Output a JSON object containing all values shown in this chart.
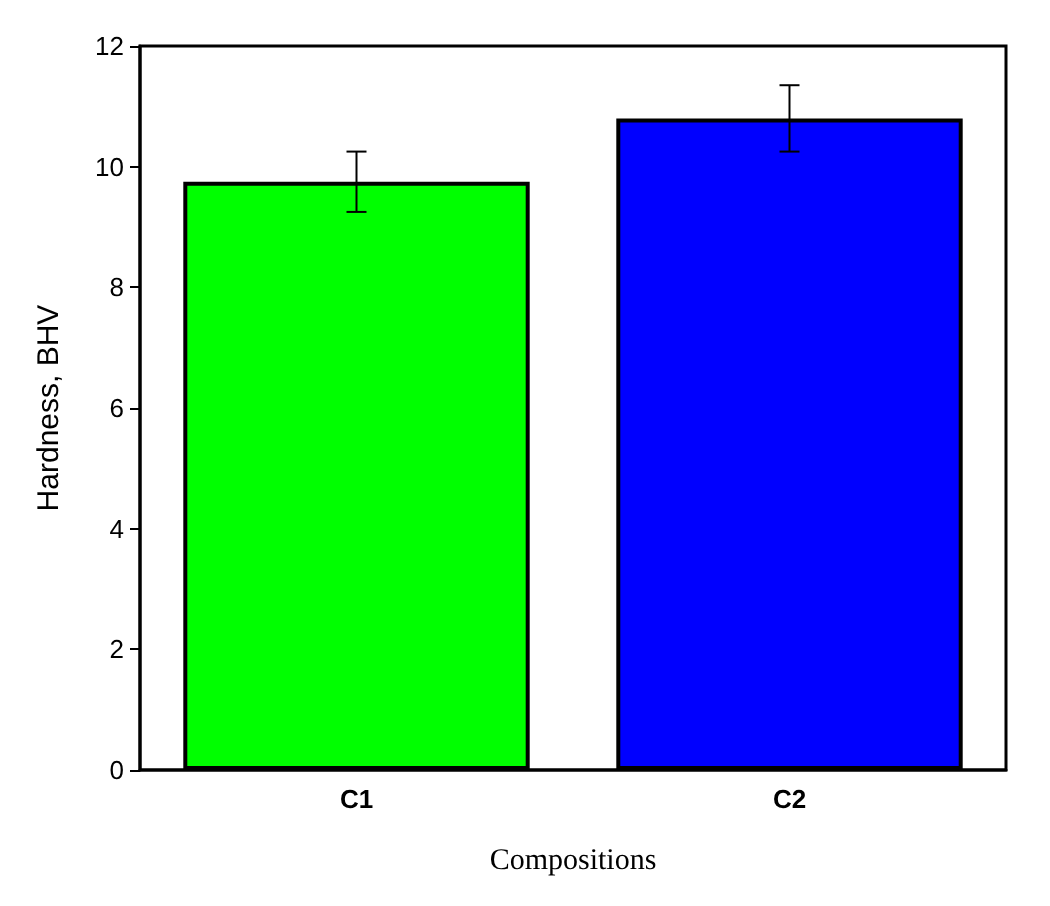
{
  "chart_data": {
    "type": "bar",
    "xlabel": "Compositions",
    "ylabel": "Hardness, BHV",
    "categories": [
      "C1",
      "C2"
    ],
    "values": [
      9.75,
      10.8
    ],
    "colors": [
      "#00ff00",
      "#0000ff"
    ],
    "errors": [
      0.5,
      0.55
    ],
    "ylim": [
      0,
      12
    ],
    "yticks": [
      0,
      2,
      4,
      6,
      8,
      10,
      12
    ],
    "grid": false
  }
}
